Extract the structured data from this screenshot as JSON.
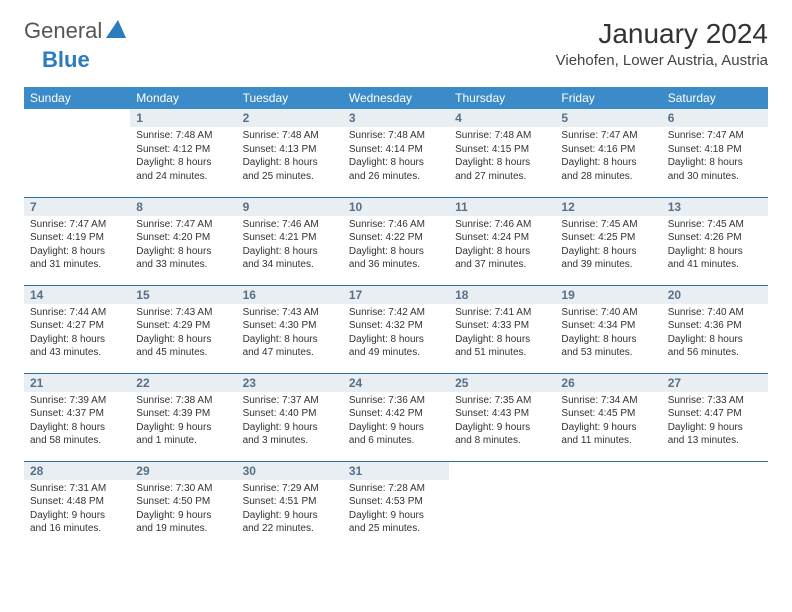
{
  "brand": {
    "name1": "General",
    "name2": "Blue"
  },
  "title": "January 2024",
  "location": "Viehofen, Lower Austria, Austria",
  "colors": {
    "header_bg": "#3b8bc9",
    "header_text": "#ffffff",
    "row_divider": "#2b6fa8",
    "daynum_bg": "#e9eef3",
    "daynum_text": "#56708a",
    "body_text": "#333333",
    "brand_blue": "#2b7bbf",
    "page_bg": "#ffffff"
  },
  "typography": {
    "title_fontsize": 28,
    "location_fontsize": 15,
    "weekday_fontsize": 12,
    "daynum_fontsize": 12,
    "cell_fontsize": 10
  },
  "weekdays": [
    "Sunday",
    "Monday",
    "Tuesday",
    "Wednesday",
    "Thursday",
    "Friday",
    "Saturday"
  ],
  "weeks": [
    [
      {
        "day": "",
        "sunrise": "",
        "sunset": "",
        "daylight": ""
      },
      {
        "day": "1",
        "sunrise": "Sunrise: 7:48 AM",
        "sunset": "Sunset: 4:12 PM",
        "daylight": "Daylight: 8 hours and 24 minutes."
      },
      {
        "day": "2",
        "sunrise": "Sunrise: 7:48 AM",
        "sunset": "Sunset: 4:13 PM",
        "daylight": "Daylight: 8 hours and 25 minutes."
      },
      {
        "day": "3",
        "sunrise": "Sunrise: 7:48 AM",
        "sunset": "Sunset: 4:14 PM",
        "daylight": "Daylight: 8 hours and 26 minutes."
      },
      {
        "day": "4",
        "sunrise": "Sunrise: 7:48 AM",
        "sunset": "Sunset: 4:15 PM",
        "daylight": "Daylight: 8 hours and 27 minutes."
      },
      {
        "day": "5",
        "sunrise": "Sunrise: 7:47 AM",
        "sunset": "Sunset: 4:16 PM",
        "daylight": "Daylight: 8 hours and 28 minutes."
      },
      {
        "day": "6",
        "sunrise": "Sunrise: 7:47 AM",
        "sunset": "Sunset: 4:18 PM",
        "daylight": "Daylight: 8 hours and 30 minutes."
      }
    ],
    [
      {
        "day": "7",
        "sunrise": "Sunrise: 7:47 AM",
        "sunset": "Sunset: 4:19 PM",
        "daylight": "Daylight: 8 hours and 31 minutes."
      },
      {
        "day": "8",
        "sunrise": "Sunrise: 7:47 AM",
        "sunset": "Sunset: 4:20 PM",
        "daylight": "Daylight: 8 hours and 33 minutes."
      },
      {
        "day": "9",
        "sunrise": "Sunrise: 7:46 AM",
        "sunset": "Sunset: 4:21 PM",
        "daylight": "Daylight: 8 hours and 34 minutes."
      },
      {
        "day": "10",
        "sunrise": "Sunrise: 7:46 AM",
        "sunset": "Sunset: 4:22 PM",
        "daylight": "Daylight: 8 hours and 36 minutes."
      },
      {
        "day": "11",
        "sunrise": "Sunrise: 7:46 AM",
        "sunset": "Sunset: 4:24 PM",
        "daylight": "Daylight: 8 hours and 37 minutes."
      },
      {
        "day": "12",
        "sunrise": "Sunrise: 7:45 AM",
        "sunset": "Sunset: 4:25 PM",
        "daylight": "Daylight: 8 hours and 39 minutes."
      },
      {
        "day": "13",
        "sunrise": "Sunrise: 7:45 AM",
        "sunset": "Sunset: 4:26 PM",
        "daylight": "Daylight: 8 hours and 41 minutes."
      }
    ],
    [
      {
        "day": "14",
        "sunrise": "Sunrise: 7:44 AM",
        "sunset": "Sunset: 4:27 PM",
        "daylight": "Daylight: 8 hours and 43 minutes."
      },
      {
        "day": "15",
        "sunrise": "Sunrise: 7:43 AM",
        "sunset": "Sunset: 4:29 PM",
        "daylight": "Daylight: 8 hours and 45 minutes."
      },
      {
        "day": "16",
        "sunrise": "Sunrise: 7:43 AM",
        "sunset": "Sunset: 4:30 PM",
        "daylight": "Daylight: 8 hours and 47 minutes."
      },
      {
        "day": "17",
        "sunrise": "Sunrise: 7:42 AM",
        "sunset": "Sunset: 4:32 PM",
        "daylight": "Daylight: 8 hours and 49 minutes."
      },
      {
        "day": "18",
        "sunrise": "Sunrise: 7:41 AM",
        "sunset": "Sunset: 4:33 PM",
        "daylight": "Daylight: 8 hours and 51 minutes."
      },
      {
        "day": "19",
        "sunrise": "Sunrise: 7:40 AM",
        "sunset": "Sunset: 4:34 PM",
        "daylight": "Daylight: 8 hours and 53 minutes."
      },
      {
        "day": "20",
        "sunrise": "Sunrise: 7:40 AM",
        "sunset": "Sunset: 4:36 PM",
        "daylight": "Daylight: 8 hours and 56 minutes."
      }
    ],
    [
      {
        "day": "21",
        "sunrise": "Sunrise: 7:39 AM",
        "sunset": "Sunset: 4:37 PM",
        "daylight": "Daylight: 8 hours and 58 minutes."
      },
      {
        "day": "22",
        "sunrise": "Sunrise: 7:38 AM",
        "sunset": "Sunset: 4:39 PM",
        "daylight": "Daylight: 9 hours and 1 minute."
      },
      {
        "day": "23",
        "sunrise": "Sunrise: 7:37 AM",
        "sunset": "Sunset: 4:40 PM",
        "daylight": "Daylight: 9 hours and 3 minutes."
      },
      {
        "day": "24",
        "sunrise": "Sunrise: 7:36 AM",
        "sunset": "Sunset: 4:42 PM",
        "daylight": "Daylight: 9 hours and 6 minutes."
      },
      {
        "day": "25",
        "sunrise": "Sunrise: 7:35 AM",
        "sunset": "Sunset: 4:43 PM",
        "daylight": "Daylight: 9 hours and 8 minutes."
      },
      {
        "day": "26",
        "sunrise": "Sunrise: 7:34 AM",
        "sunset": "Sunset: 4:45 PM",
        "daylight": "Daylight: 9 hours and 11 minutes."
      },
      {
        "day": "27",
        "sunrise": "Sunrise: 7:33 AM",
        "sunset": "Sunset: 4:47 PM",
        "daylight": "Daylight: 9 hours and 13 minutes."
      }
    ],
    [
      {
        "day": "28",
        "sunrise": "Sunrise: 7:31 AM",
        "sunset": "Sunset: 4:48 PM",
        "daylight": "Daylight: 9 hours and 16 minutes."
      },
      {
        "day": "29",
        "sunrise": "Sunrise: 7:30 AM",
        "sunset": "Sunset: 4:50 PM",
        "daylight": "Daylight: 9 hours and 19 minutes."
      },
      {
        "day": "30",
        "sunrise": "Sunrise: 7:29 AM",
        "sunset": "Sunset: 4:51 PM",
        "daylight": "Daylight: 9 hours and 22 minutes."
      },
      {
        "day": "31",
        "sunrise": "Sunrise: 7:28 AM",
        "sunset": "Sunset: 4:53 PM",
        "daylight": "Daylight: 9 hours and 25 minutes."
      },
      {
        "day": "",
        "sunrise": "",
        "sunset": "",
        "daylight": ""
      },
      {
        "day": "",
        "sunrise": "",
        "sunset": "",
        "daylight": ""
      },
      {
        "day": "",
        "sunrise": "",
        "sunset": "",
        "daylight": ""
      }
    ]
  ]
}
